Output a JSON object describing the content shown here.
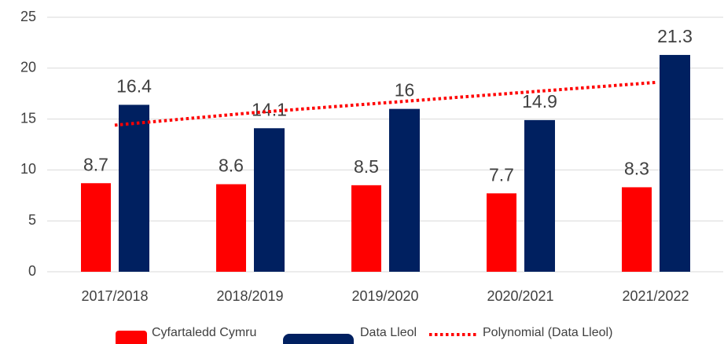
{
  "chart_data": {
    "type": "bar",
    "categories": [
      "2017/2018",
      "2018/2019",
      "2019/2020",
      "2020/2021",
      "2021/2022"
    ],
    "series": [
      {
        "name": "Cyfartaledd Cymru",
        "color": "#ff0000",
        "values": [
          8.7,
          8.6,
          8.5,
          7.7,
          8.3
        ]
      },
      {
        "name": "Data Lleol",
        "color": "#002060",
        "values": [
          16.4,
          14.1,
          16,
          14.9,
          21.3
        ]
      }
    ],
    "trendline": {
      "name": "Polynomial (Data Lleol)",
      "color": "#ff0000",
      "values": [
        14.4,
        15.6,
        16.6,
        17.6,
        18.6
      ]
    },
    "ylim": [
      0,
      25
    ],
    "yticks": [
      0,
      5,
      10,
      15,
      20,
      25
    ],
    "grid": true
  }
}
